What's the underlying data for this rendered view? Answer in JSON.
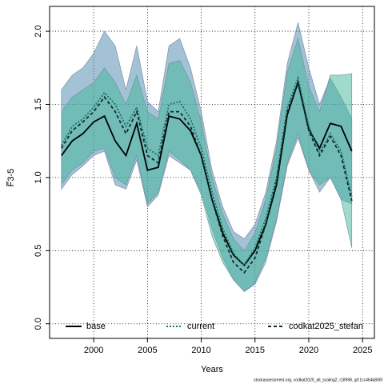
{
  "chart_data": {
    "type": "line",
    "xlabel": "Years",
    "ylabel": "F̅3-5",
    "footer": "stockassessment.org, codkat2025_all_scaling2, r18998, git:1cc464b806f",
    "x": [
      1997,
      1998,
      1999,
      2000,
      2001,
      2002,
      2003,
      2004,
      2005,
      2006,
      2007,
      2008,
      2009,
      2010,
      2011,
      2012,
      2013,
      2014,
      2015,
      2016,
      2017,
      2018,
      2019,
      2020,
      2021,
      2022,
      2023,
      2024
    ],
    "series": [
      {
        "name": "base",
        "color": "#000000",
        "style": "solid",
        "band_color": "#4a85ad",
        "values": [
          1.15,
          1.25,
          1.3,
          1.38,
          1.42,
          1.25,
          1.15,
          1.37,
          1.05,
          1.07,
          1.42,
          1.4,
          1.32,
          1.15,
          0.85,
          0.62,
          0.47,
          0.4,
          0.5,
          0.68,
          0.95,
          1.43,
          1.65,
          1.33,
          1.2,
          1.37,
          1.35,
          1.18
        ],
        "upper": [
          1.6,
          1.7,
          1.75,
          1.85,
          2.0,
          1.9,
          1.6,
          1.9,
          1.52,
          1.45,
          1.9,
          1.95,
          1.75,
          1.45,
          1.05,
          0.8,
          0.63,
          0.58,
          0.68,
          0.9,
          1.25,
          1.78,
          2.06,
          1.75,
          1.5,
          1.68,
          1.55,
          1.4
        ],
        "lower": [
          0.92,
          1.02,
          1.08,
          1.15,
          1.18,
          0.95,
          0.92,
          1.12,
          0.8,
          0.88,
          1.15,
          1.1,
          1.05,
          0.9,
          0.65,
          0.45,
          0.3,
          0.22,
          0.27,
          0.42,
          0.7,
          1.08,
          1.27,
          1.05,
          0.9,
          1.0,
          0.85,
          0.82
        ]
      },
      {
        "name": "current",
        "color": "#1f6f6a",
        "style": "dotted",
        "band_color": "#3fb59a",
        "values": [
          1.22,
          1.35,
          1.4,
          1.48,
          1.58,
          1.5,
          1.35,
          1.48,
          1.2,
          1.15,
          1.5,
          1.52,
          1.4,
          1.2,
          0.9,
          0.65,
          0.48,
          0.4,
          0.52,
          0.72,
          1.0,
          1.48,
          1.68,
          1.35,
          1.17,
          1.3,
          1.18,
          0.87
        ],
        "upper": [
          1.45,
          1.55,
          1.6,
          1.65,
          1.75,
          1.65,
          1.5,
          1.7,
          1.45,
          1.4,
          1.78,
          1.8,
          1.65,
          1.38,
          1.0,
          0.75,
          0.58,
          0.5,
          0.62,
          0.85,
          1.2,
          1.72,
          1.95,
          1.62,
          1.45,
          1.7,
          1.7,
          1.71
        ],
        "lower": [
          0.95,
          1.05,
          1.1,
          1.18,
          1.2,
          1.0,
          0.95,
          1.15,
          0.82,
          0.9,
          1.18,
          1.12,
          1.05,
          0.88,
          0.6,
          0.42,
          0.3,
          0.22,
          0.28,
          0.45,
          0.72,
          1.1,
          1.3,
          1.05,
          0.95,
          1.0,
          0.85,
          0.52
        ]
      },
      {
        "name": "codkat2025_stefan",
        "color": "#0d2b2b",
        "style": "dashed",
        "values": [
          1.2,
          1.32,
          1.38,
          1.45,
          1.55,
          1.45,
          1.3,
          1.45,
          1.15,
          1.1,
          1.45,
          1.45,
          1.35,
          1.15,
          0.85,
          0.6,
          0.42,
          0.35,
          0.45,
          0.68,
          0.97,
          1.45,
          1.65,
          1.32,
          1.15,
          1.28,
          1.15,
          0.84
        ]
      }
    ],
    "xlim": [
      1995.9,
      2026.1
    ],
    "ylim": [
      -0.1,
      2.17
    ],
    "xticks": [
      2000,
      2005,
      2010,
      2015,
      2020,
      2025
    ],
    "yticks": [
      {
        "value": 0,
        "label": "0.0"
      },
      0.5,
      {
        "value": 1,
        "label": "1.0"
      },
      1.5,
      {
        "value": 2,
        "label": "2.0"
      }
    ],
    "grid": true,
    "legend": "bottom"
  }
}
